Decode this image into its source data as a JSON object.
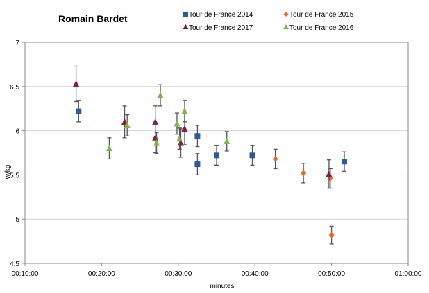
{
  "chart_data": {
    "type": "scatter",
    "title": "Romain Bardet",
    "xlabel": "minutes",
    "ylabel": "w/kg",
    "xlim": [
      "00:10:00",
      "01:00:00"
    ],
    "ylim": [
      4.5,
      7
    ],
    "x_ticks": [
      "00:10:00",
      "00:20:00",
      "00:30:00",
      "00:40:00",
      "00:50:00",
      "01:00:00"
    ],
    "y_ticks": [
      "4.5",
      "5",
      "5.5",
      "6",
      "6.5",
      "7"
    ],
    "grid": "horizontal",
    "error_bars": true,
    "legend_position": "top",
    "series": [
      {
        "name": "Tour de France 2014",
        "marker": "square",
        "color": "#2a5a9c",
        "points": [
          {
            "x": "00:17:00",
            "y": 6.22,
            "err": 0.12
          },
          {
            "x": "00:32:30",
            "y": 5.94,
            "err": 0.12
          },
          {
            "x": "00:32:30",
            "y": 5.62,
            "err": 0.12
          },
          {
            "x": "00:35:00",
            "y": 5.72,
            "err": 0.11
          },
          {
            "x": "00:39:40",
            "y": 5.72,
            "err": 0.11
          },
          {
            "x": "00:51:40",
            "y": 5.65,
            "err": 0.11
          }
        ]
      },
      {
        "name": "Tour de France 2015",
        "marker": "diamond",
        "color": "#f26522",
        "points": [
          {
            "x": "00:42:40",
            "y": 5.68,
            "err": 0.11
          },
          {
            "x": "00:46:20",
            "y": 5.52,
            "err": 0.11
          },
          {
            "x": "00:49:50",
            "y": 5.46,
            "err": 0.11
          },
          {
            "x": "00:50:00",
            "y": 4.82,
            "err": 0.1
          }
        ]
      },
      {
        "name": "Tour de France 2017",
        "marker": "triangle",
        "color": "#8b1a3a",
        "points": [
          {
            "x": "00:16:40",
            "y": 6.53,
            "err": 0.2
          },
          {
            "x": "00:23:00",
            "y": 6.1,
            "err": 0.18
          },
          {
            "x": "00:27:00",
            "y": 6.1,
            "err": 0.18
          },
          {
            "x": "00:27:00",
            "y": 5.92,
            "err": 0.17
          },
          {
            "x": "00:30:20",
            "y": 5.86,
            "err": 0.16
          },
          {
            "x": "00:30:50",
            "y": 6.02,
            "err": 0.18
          },
          {
            "x": "00:49:40",
            "y": 5.51,
            "err": 0.16
          }
        ]
      },
      {
        "name": "Tour de France 2016",
        "marker": "triangle",
        "color": "#7ab648",
        "points": [
          {
            "x": "00:21:00",
            "y": 5.8,
            "err": 0.12
          },
          {
            "x": "00:23:20",
            "y": 6.06,
            "err": 0.12
          },
          {
            "x": "00:27:10",
            "y": 5.86,
            "err": 0.12
          },
          {
            "x": "00:27:40",
            "y": 6.4,
            "err": 0.12
          },
          {
            "x": "00:29:50",
            "y": 6.08,
            "err": 0.12
          },
          {
            "x": "00:30:10",
            "y": 5.91,
            "err": 0.12
          },
          {
            "x": "00:30:50",
            "y": 6.22,
            "err": 0.12
          },
          {
            "x": "00:36:20",
            "y": 5.88,
            "err": 0.11
          }
        ]
      }
    ]
  }
}
